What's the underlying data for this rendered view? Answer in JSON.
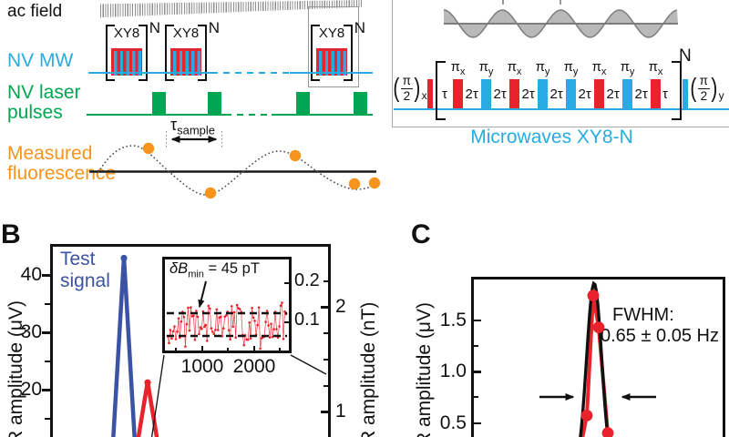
{
  "colors": {
    "red": "#e8232b",
    "mw_blue": "#29abe2",
    "dark_blue": "#3b53a5",
    "green": "#00a651",
    "orange": "#f7941e",
    "comb_gray": "#8f8f8f",
    "wave_fill": "#b9b9b9",
    "wave_stroke": "#7d7d7d",
    "ink": "#111111"
  },
  "panelA": {
    "ac_field_label": "ac field",
    "nv_mw_label": "NV MW",
    "nv_laser_label_line1": "NV laser",
    "nv_laser_label_line2": "pulses",
    "fluorescence_label_line1": "Measured",
    "fluorescence_label_line2": "fluorescence",
    "xy8_label": "XY8",
    "xy8_exponent": "N",
    "mw_group_count": 3,
    "tau_sample": {
      "symbol": "τ",
      "subscript": "sample"
    }
  },
  "xy8_sequence": {
    "caption": "Microwaves XY8-N",
    "exponent": "N",
    "pre_pulse": {
      "open": "(",
      "numerator": "π",
      "denominator": "2",
      "close": ")",
      "subscript": "x",
      "phase": "x"
    },
    "post_pulse": {
      "open": "(",
      "numerator": "π",
      "denominator": "2",
      "close": ")",
      "subscript": "y",
      "phase": "y"
    },
    "delays": [
      "τ",
      "2τ",
      "2τ",
      "2τ",
      "2τ",
      "2τ",
      "2τ",
      "2τ",
      "τ"
    ],
    "pulses": [
      {
        "symbol": "π",
        "subscript": "x",
        "phase": "x"
      },
      {
        "symbol": "π",
        "subscript": "y",
        "phase": "y"
      },
      {
        "symbol": "π",
        "subscript": "x",
        "phase": "x"
      },
      {
        "symbol": "π",
        "subscript": "y",
        "phase": "y"
      },
      {
        "symbol": "π",
        "subscript": "y",
        "phase": "y"
      },
      {
        "symbol": "π",
        "subscript": "x",
        "phase": "x"
      },
      {
        "symbol": "π",
        "subscript": "y",
        "phase": "y"
      },
      {
        "symbol": "π",
        "subscript": "x",
        "phase": "x"
      }
    ]
  },
  "panelB": {
    "label": "B",
    "test_signal_line1": "Test",
    "test_signal_line2": "signal",
    "inset": {
      "annotation_prefix": "δB",
      "annotation_sub": "min",
      "annotation_suffix": " = 45 pT"
    }
  },
  "panelC": {
    "label": "C",
    "fwhm_line1": "FWHM:",
    "fwhm_line2": "0.65 ± 0.05 Hz"
  },
  "chart_data": [
    {
      "panel": "B",
      "type": "line",
      "ylabel_left": "R amplitude (μV)",
      "ylabel_right": "R amplitude (nT)",
      "yticks_left": [
        "40",
        "30",
        "20"
      ],
      "yticks_right": [
        "2",
        "1"
      ],
      "ylim_left_uV": [
        15,
        45
      ],
      "series": [
        {
          "name": "Test signal",
          "color": "#3b53a5",
          "peak_amplitude_uV": 43.1
        },
        {
          "name": "",
          "color": "#e8232b",
          "peak_amplitude_uV": 21.4
        }
      ],
      "inset": {
        "type": "scatter-noise",
        "annotation": "δB_min = 45 pT",
        "xticks": [
          "1000",
          "2000"
        ],
        "yticks_right": [
          "0.2",
          "0.1"
        ],
        "noise_seed": 9,
        "noise_points": 88
      }
    },
    {
      "panel": "C",
      "type": "scatter",
      "ylabel": "R amplitude (μV)",
      "yticks": [
        "1.5",
        "1.0",
        "0.5"
      ],
      "points_uV": [
        0.57,
        1.74,
        1.43,
        0.4
      ],
      "fit": {
        "type": "gaussian",
        "peak_uV": 1.86,
        "fwhm_hz": 0.65,
        "fwhm_err_hz": 0.05
      }
    }
  ]
}
